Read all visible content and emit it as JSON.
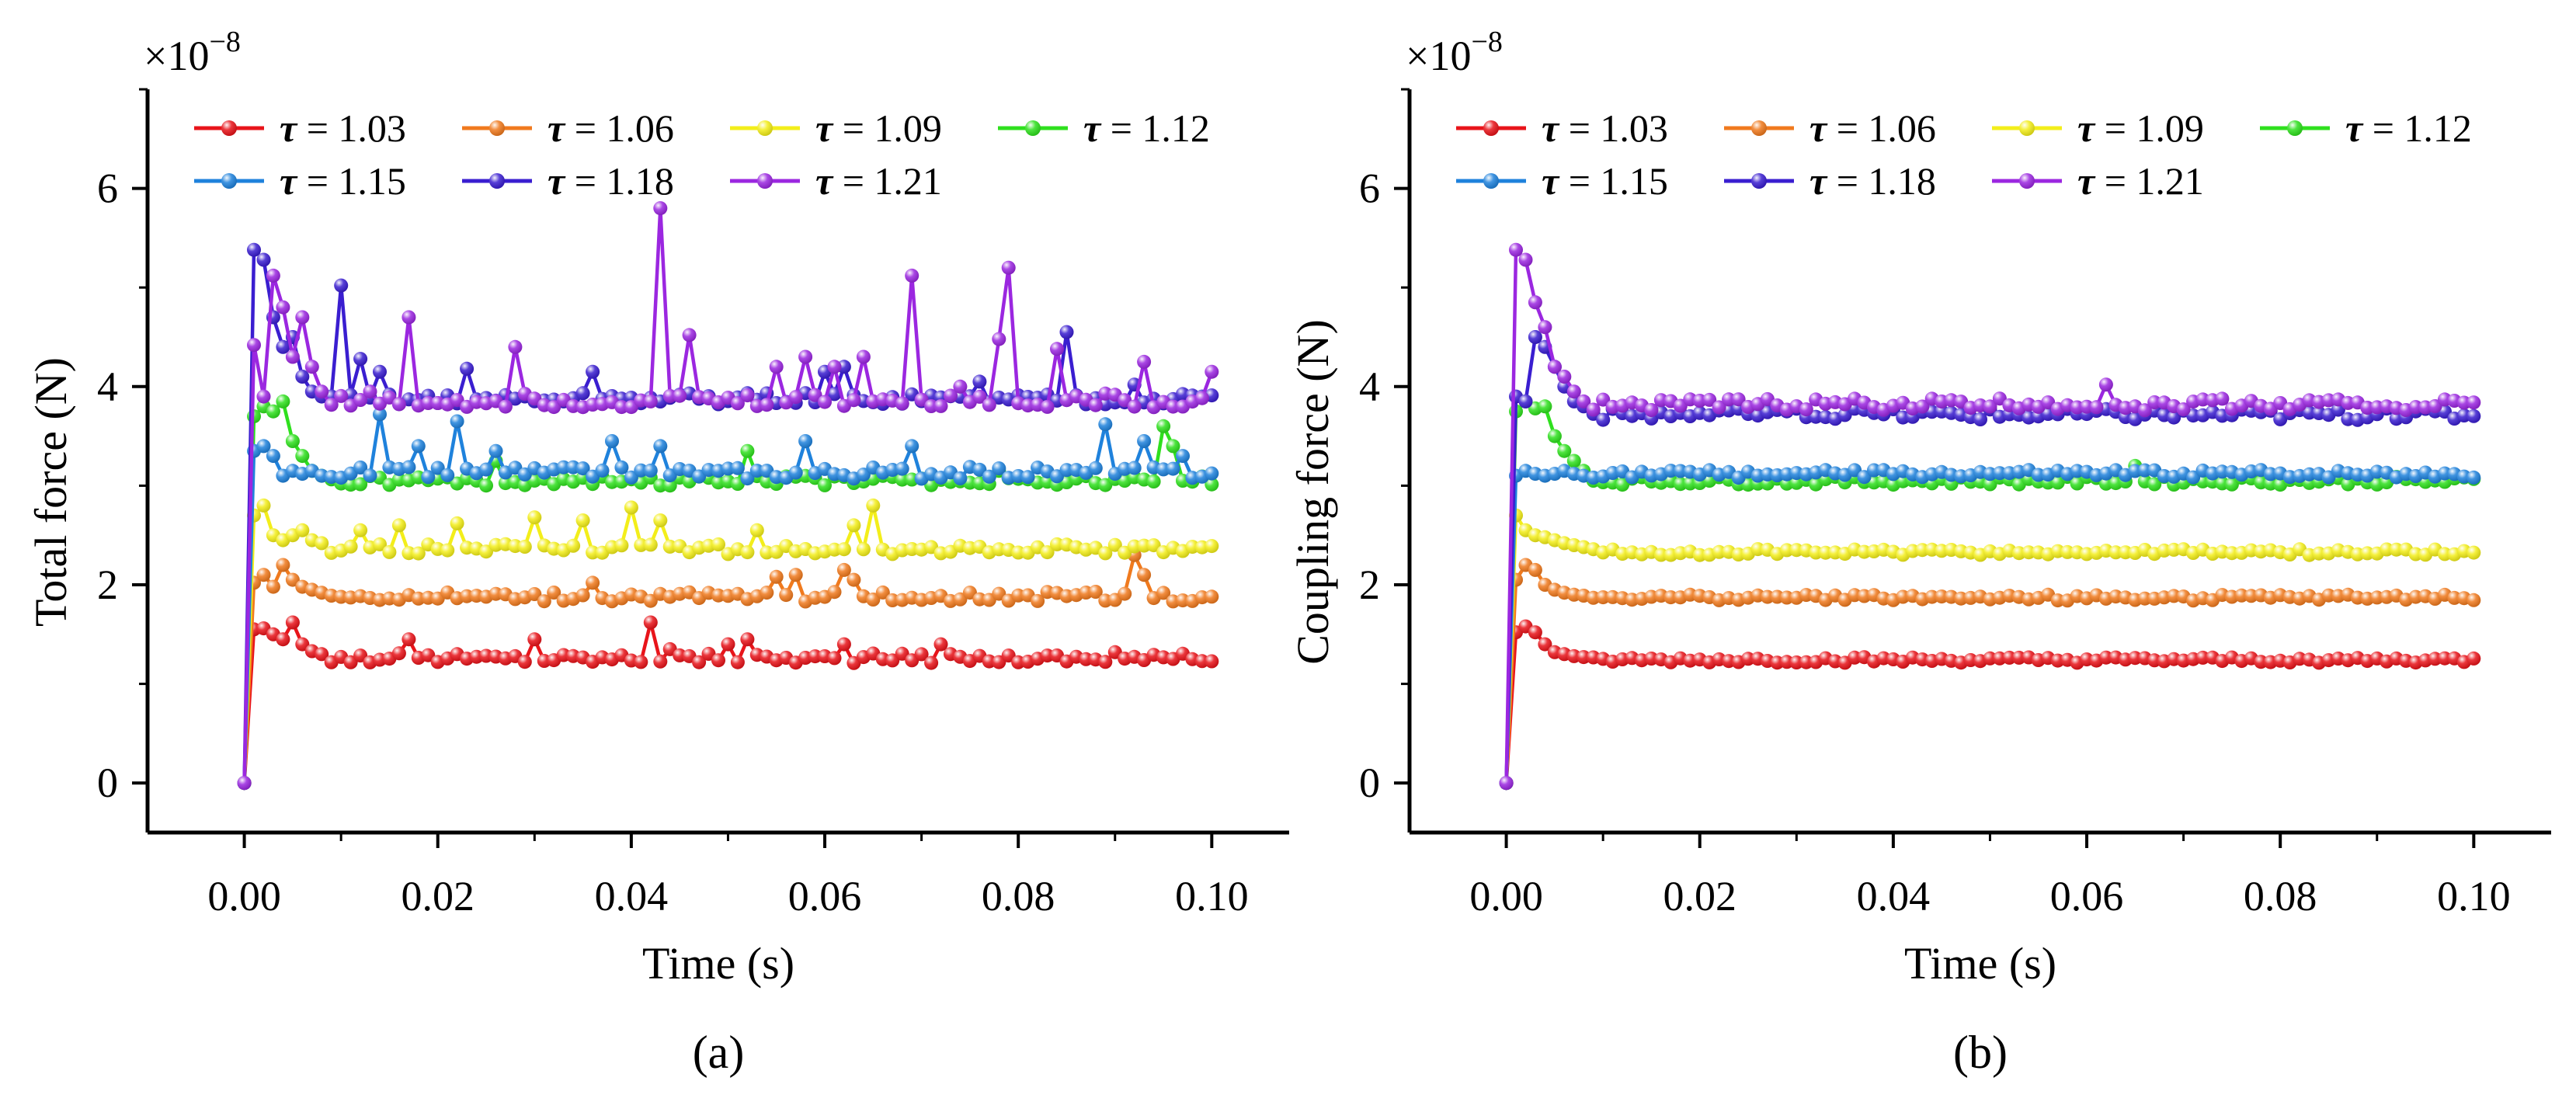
{
  "chart_data": [
    {
      "type": "line",
      "panel_label": "(a)",
      "xlabel": "Time (s)",
      "ylabel": "Total force (N)",
      "y_exponent": "×10",
      "y_exponent_power": "−8",
      "xlim": [
        -0.01,
        0.108
      ],
      "ylim": [
        -0.5,
        7.0
      ],
      "x_ticks": [
        0.0,
        0.02,
        0.04,
        0.06,
        0.08,
        0.1
      ],
      "x_tick_labels": [
        "0.00",
        "0.02",
        "0.04",
        "0.06",
        "0.08",
        "0.10"
      ],
      "y_ticks": [
        0,
        2,
        4,
        6
      ],
      "y_tick_labels": [
        "0",
        "2",
        "4",
        "6"
      ],
      "legend_position": "top-left",
      "sampling": {
        "x_start": 0.0,
        "x_step": 0.001,
        "x_end": 0.1
      },
      "series": [
        {
          "name": "τ = 1.03",
          "label": "1.03",
          "color": "#e8141a",
          "baseline": 1.26,
          "noise": 0.05,
          "initial": [
            0,
            1.55,
            1.56,
            1.5,
            1.45,
            1.62,
            1.4,
            1.33,
            1.3
          ],
          "spikes": [
            [
              0.017,
              1.45
            ],
            [
              0.03,
              1.45
            ],
            [
              0.042,
              1.62
            ],
            [
              0.044,
              1.35
            ],
            [
              0.05,
              1.4
            ],
            [
              0.052,
              1.45
            ],
            [
              0.062,
              1.4
            ],
            [
              0.072,
              1.4
            ],
            [
              0.09,
              1.32
            ]
          ]
        },
        {
          "name": "τ = 1.06",
          "label": "1.06",
          "color": "#f07a1e",
          "baseline": 1.88,
          "noise": 0.05,
          "initial": [
            0,
            2.02,
            2.1,
            1.98,
            2.2,
            2.05,
            1.98,
            1.95,
            1.92
          ],
          "spikes": [
            [
              0.036,
              2.02
            ],
            [
              0.055,
              2.08
            ],
            [
              0.057,
              2.1
            ],
            [
              0.062,
              2.15
            ],
            [
              0.063,
              2.05
            ],
            [
              0.092,
              2.3
            ],
            [
              0.093,
              2.1
            ]
          ]
        },
        {
          "name": "τ = 1.09",
          "label": "1.09",
          "color": "#f3ee1a",
          "baseline": 2.36,
          "noise": 0.05,
          "initial": [
            0,
            2.7,
            2.8,
            2.5,
            2.45,
            2.5,
            2.55,
            2.45,
            2.42
          ],
          "spikes": [
            [
              0.012,
              2.55
            ],
            [
              0.016,
              2.6
            ],
            [
              0.022,
              2.62
            ],
            [
              0.03,
              2.68
            ],
            [
              0.035,
              2.65
            ],
            [
              0.04,
              2.78
            ],
            [
              0.043,
              2.65
            ],
            [
              0.053,
              2.55
            ],
            [
              0.063,
              2.6
            ],
            [
              0.065,
              2.8
            ]
          ]
        },
        {
          "name": "τ = 1.12",
          "label": "1.12",
          "color": "#2fe01e",
          "baseline": 3.05,
          "noise": 0.05,
          "initial": [
            0,
            3.7,
            3.8,
            3.75,
            3.85,
            3.45,
            3.3,
            3.15,
            3.1
          ],
          "spikes": [
            [
              0.026,
              3.25
            ],
            [
              0.052,
              3.35
            ],
            [
              0.078,
              3.15
            ],
            [
              0.091,
              3.05
            ],
            [
              0.095,
              3.6
            ],
            [
              0.096,
              3.4
            ]
          ]
        },
        {
          "name": "τ = 1.15",
          "label": "1.15",
          "color": "#1f82dc",
          "baseline": 3.13,
          "noise": 0.06,
          "initial": [
            0,
            3.35,
            3.4,
            3.3,
            3.1,
            3.15,
            3.12,
            3.15,
            3.1
          ],
          "spikes": [
            [
              0.014,
              3.72
            ],
            [
              0.018,
              3.4
            ],
            [
              0.022,
              3.65
            ],
            [
              0.026,
              3.35
            ],
            [
              0.038,
              3.45
            ],
            [
              0.043,
              3.4
            ],
            [
              0.058,
              3.45
            ],
            [
              0.069,
              3.4
            ],
            [
              0.089,
              3.62
            ],
            [
              0.093,
              3.45
            ],
            [
              0.097,
              3.3
            ]
          ]
        },
        {
          "name": "τ = 1.18",
          "label": "1.18",
          "color": "#3a1ed0",
          "baseline": 3.88,
          "noise": 0.06,
          "initial": [
            0,
            5.38,
            5.28,
            4.7,
            4.4,
            4.5,
            4.1,
            3.95,
            3.9
          ],
          "spikes": [
            [
              0.01,
              5.02
            ],
            [
              0.012,
              4.28
            ],
            [
              0.014,
              4.15
            ],
            [
              0.023,
              4.18
            ],
            [
              0.036,
              4.15
            ],
            [
              0.06,
              4.15
            ],
            [
              0.062,
              4.2
            ],
            [
              0.076,
              4.05
            ],
            [
              0.085,
              4.55
            ],
            [
              0.092,
              4.02
            ],
            [
              0.099,
              3.9
            ]
          ]
        },
        {
          "name": "τ = 1.21",
          "label": "1.21",
          "color": "#9b27e0",
          "baseline": 3.86,
          "noise": 0.07,
          "initial": [
            0,
            4.42,
            3.9,
            5.12,
            4.8,
            4.3,
            4.7,
            4.2,
            3.95
          ],
          "spikes": [
            [
              0.013,
              3.95
            ],
            [
              0.017,
              4.7
            ],
            [
              0.028,
              4.4
            ],
            [
              0.043,
              5.8
            ],
            [
              0.046,
              4.52
            ],
            [
              0.055,
              4.2
            ],
            [
              0.058,
              4.3
            ],
            [
              0.061,
              4.2
            ],
            [
              0.064,
              4.3
            ],
            [
              0.069,
              5.12
            ],
            [
              0.074,
              4.0
            ],
            [
              0.078,
              4.48
            ],
            [
              0.079,
              5.2
            ],
            [
              0.084,
              4.38
            ],
            [
              0.093,
              4.25
            ],
            [
              0.1,
              4.15
            ]
          ]
        }
      ]
    },
    {
      "type": "line",
      "panel_label": "(b)",
      "xlabel": "Time (s)",
      "ylabel": "Coupling force (N)",
      "y_exponent": "×10",
      "y_exponent_power": "−8",
      "xlim": [
        -0.01,
        0.108
      ],
      "ylim": [
        -0.5,
        7.0
      ],
      "x_ticks": [
        0.0,
        0.02,
        0.04,
        0.06,
        0.08,
        0.1
      ],
      "x_tick_labels": [
        "0.00",
        "0.02",
        "0.04",
        "0.06",
        "0.08",
        "0.10"
      ],
      "y_ticks": [
        0,
        2,
        4,
        6
      ],
      "y_tick_labels": [
        "0",
        "2",
        "4",
        "6"
      ],
      "legend_position": "top-left",
      "sampling": {
        "x_start": 0.0,
        "x_step": 0.001,
        "x_end": 0.1
      },
      "series": [
        {
          "name": "τ = 1.03",
          "label": "1.03",
          "color": "#e8141a",
          "baseline": 1.24,
          "noise": 0.03,
          "initial": [
            0,
            1.52,
            1.58,
            1.52,
            1.4,
            1.32,
            1.3,
            1.28,
            1.27
          ],
          "spikes": []
        },
        {
          "name": "τ = 1.06",
          "label": "1.06",
          "color": "#f07a1e",
          "baseline": 1.87,
          "noise": 0.03,
          "initial": [
            0,
            2.05,
            2.2,
            2.15,
            2.0,
            1.95,
            1.92,
            1.9,
            1.89
          ],
          "spikes": []
        },
        {
          "name": "τ = 1.09",
          "label": "1.09",
          "color": "#f3ee1a",
          "baseline": 2.33,
          "noise": 0.03,
          "initial": [
            0,
            2.7,
            2.55,
            2.5,
            2.48,
            2.45,
            2.42,
            2.4,
            2.38
          ],
          "spikes": []
        },
        {
          "name": "τ = 1.12",
          "label": "1.12",
          "color": "#2fe01e",
          "baseline": 3.05,
          "noise": 0.04,
          "initial": [
            0,
            3.75,
            3.85,
            3.78,
            3.8,
            3.5,
            3.35,
            3.25,
            3.15
          ],
          "spikes": [
            [
              0.065,
              3.2
            ]
          ]
        },
        {
          "name": "τ = 1.15",
          "label": "1.15",
          "color": "#1f82dc",
          "baseline": 3.12,
          "noise": 0.04,
          "initial": [
            0,
            3.1,
            3.15,
            3.12,
            3.1,
            3.12,
            3.15,
            3.12,
            3.1
          ],
          "spikes": []
        },
        {
          "name": "τ = 1.18",
          "label": "1.18",
          "color": "#3a1ed0",
          "baseline": 3.72,
          "noise": 0.06,
          "initial": [
            0,
            3.9,
            3.85,
            4.5,
            4.4,
            4.2,
            4.0,
            3.85,
            3.8
          ],
          "spikes": []
        },
        {
          "name": "τ = 1.21",
          "label": "1.21",
          "color": "#9b27e0",
          "baseline": 3.82,
          "noise": 0.06,
          "initial": [
            0,
            5.38,
            5.28,
            4.85,
            4.6,
            4.2,
            4.1,
            3.95,
            3.85
          ],
          "spikes": [
            [
              0.062,
              4.02
            ]
          ]
        }
      ]
    }
  ],
  "legend": {
    "tau_symbol": "τ",
    "equals": " = "
  }
}
